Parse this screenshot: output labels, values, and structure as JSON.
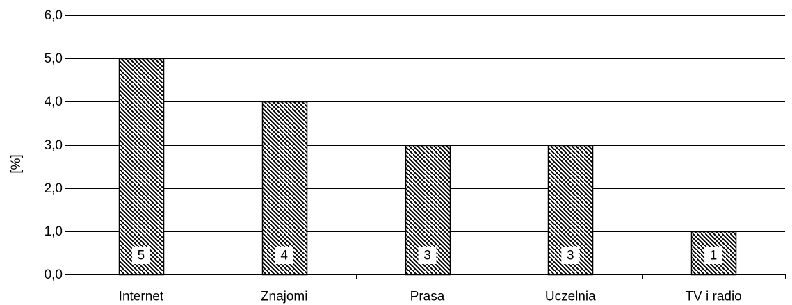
{
  "chart_data": {
    "type": "bar",
    "categories": [
      "Internet",
      "Znajomi",
      "Prasa",
      "Uczelnia",
      "TV i radio"
    ],
    "values": [
      5,
      4,
      3,
      3,
      1
    ],
    "data_labels": [
      "5",
      "4",
      "3",
      "3",
      "1"
    ],
    "title": "",
    "xlabel": "",
    "ylabel": "[%]",
    "ylim": [
      0,
      6
    ],
    "yticks": [
      "0,0",
      "1,0",
      "2,0",
      "3,0",
      "4,0",
      "5,0",
      "6,0"
    ],
    "grid": true,
    "legend": "none",
    "bar_fill": "diagonal-hatch",
    "colors": {
      "bar_stroke": "#000000",
      "hatch": "#000000",
      "gridline": "#000000",
      "label_box": "#ffffff"
    }
  }
}
